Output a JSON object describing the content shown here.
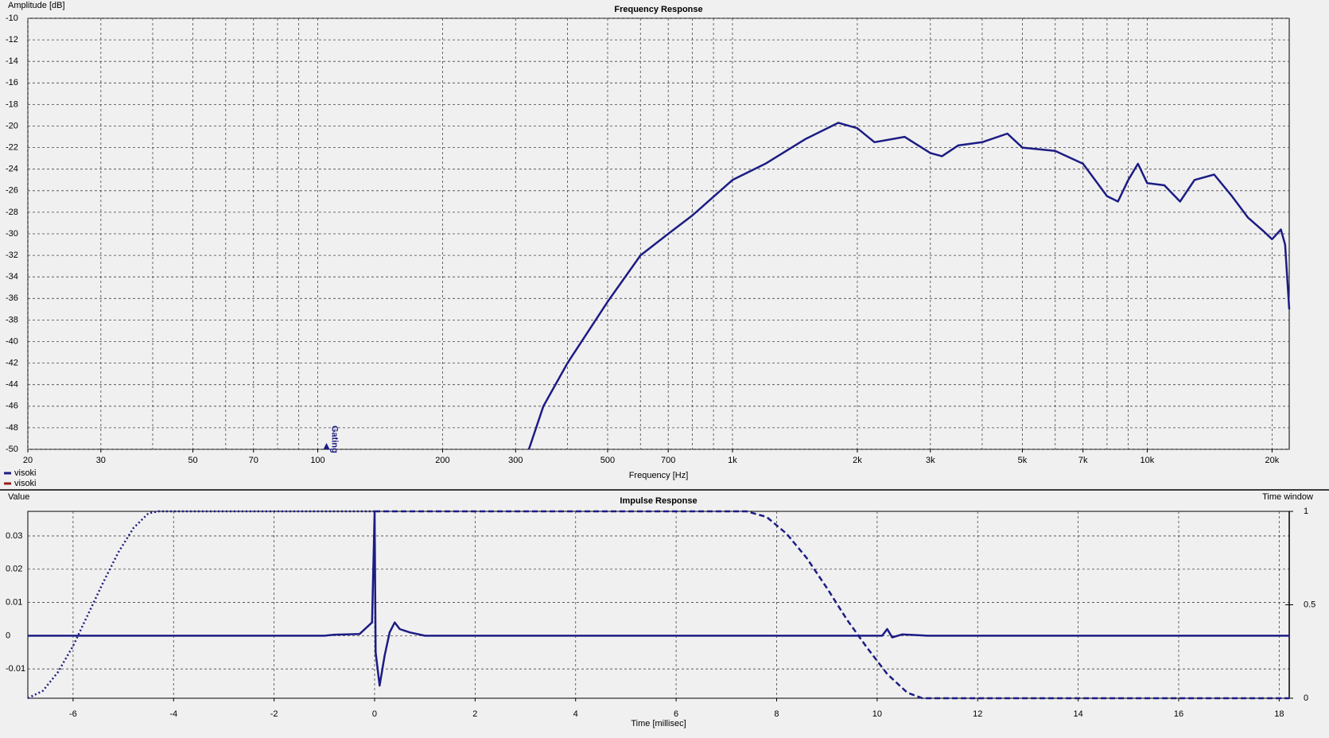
{
  "chart_data": [
    {
      "type": "line",
      "title": "Frequency Response",
      "y_label": "Amplitude [dB]",
      "x_label": "Frequency [Hz]",
      "xscale": "log",
      "xlim": [
        20,
        22000
      ],
      "ylim": [
        -50,
        -10
      ],
      "xticks": [
        20,
        30,
        50,
        70,
        100,
        200,
        300,
        500,
        700,
        {
          "value": 1000,
          "label": "1k"
        },
        {
          "value": 2000,
          "label": "2k"
        },
        {
          "value": 3000,
          "label": "3k"
        },
        {
          "value": 5000,
          "label": "5k"
        },
        {
          "value": 7000,
          "label": "7k"
        },
        {
          "value": 10000,
          "label": "10k"
        },
        {
          "value": 20000,
          "label": "20k"
        }
      ],
      "xminorticks": [
        40,
        60,
        80,
        90,
        400,
        600,
        800,
        900,
        4000,
        6000,
        8000,
        9000
      ],
      "yticks": [
        -10,
        -12,
        -14,
        -16,
        -18,
        -20,
        -22,
        -24,
        -26,
        -28,
        -30,
        -32,
        -34,
        -36,
        -38,
        -40,
        -42,
        -44,
        -46,
        -48,
        -50
      ],
      "grid": true,
      "annotation": {
        "text": "Gating",
        "x": 105
      },
      "legend": [
        {
          "name": "visoki",
          "color": "#1c1c84"
        },
        {
          "name": "visoki",
          "color": "#9b1b1b"
        }
      ],
      "series": [
        {
          "color": "#1c1c84",
          "x": [
            323,
            350,
            400,
            450,
            500,
            600,
            700,
            800,
            1000,
            1200,
            1500,
            1800,
            2000,
            2200,
            2600,
            3000,
            3200,
            3500,
            4000,
            4600,
            5000,
            6000,
            7000,
            8000,
            8500,
            9000,
            9500,
            10000,
            11000,
            12000,
            13000,
            14500,
            16000,
            17500,
            19000,
            20000,
            21000,
            21500,
            22000
          ],
          "values": [
            -50,
            -46,
            -42,
            -39,
            -36.3,
            -32,
            -30,
            -28.3,
            -25,
            -23.5,
            -21.2,
            -19.7,
            -20.2,
            -21.5,
            -21,
            -22.5,
            -22.8,
            -21.8,
            -21.5,
            -20.7,
            -22,
            -22.3,
            -23.5,
            -26.5,
            -27,
            -25,
            -23.5,
            -25.3,
            -25.5,
            -27,
            -25,
            -24.5,
            -26.5,
            -28.5,
            -29.7,
            -30.5,
            -29.6,
            -31,
            -37
          ]
        }
      ]
    },
    {
      "type": "line",
      "title": "Impulse Response",
      "y_label": "Value",
      "y2_label": "Time window",
      "x_label": "Time [millisec]",
      "xlim": [
        -6.9,
        18.2
      ],
      "ylim": [
        -0.0188,
        0.0374
      ],
      "y2lim": [
        0,
        1
      ],
      "xticks": [
        -6,
        -4,
        -2,
        0,
        2,
        4,
        6,
        8,
        10,
        12,
        14,
        16,
        18
      ],
      "yticks": [
        -0.01,
        0,
        0.01,
        0.02,
        0.03
      ],
      "y2ticks": [
        0,
        0.5,
        1
      ],
      "grid": true,
      "series": [
        {
          "color": "#1c1c84",
          "style": "solid",
          "x": [
            -6.9,
            -1,
            -0.8,
            -0.3,
            -0.05,
            0,
            0.02,
            0.06,
            0.1,
            0.2,
            0.3,
            0.4,
            0.5,
            0.7,
            1.0,
            10.1,
            10.2,
            10.3,
            10.5,
            11,
            18.2
          ],
          "values": [
            0,
            0,
            0.0003,
            0.0005,
            0.004,
            0.037,
            -0.005,
            -0.01,
            -0.015,
            -0.006,
            0.001,
            0.004,
            0.002,
            0.001,
            0,
            0,
            0.002,
            -0.0005,
            0.0004,
            0,
            0
          ]
        },
        {
          "color": "#1c1c84",
          "style": "dotted",
          "axis": "y2",
          "x": [
            -6.9,
            -6.6,
            -6.3,
            -6.0,
            -5.7,
            -5.4,
            -5.1,
            -4.8,
            -4.5,
            -4.3,
            0
          ],
          "values": [
            0,
            0.04,
            0.14,
            0.28,
            0.45,
            0.62,
            0.78,
            0.91,
            0.99,
            1,
            1
          ]
        },
        {
          "color": "#1c1c84",
          "style": "dashed",
          "axis": "y2",
          "x": [
            0,
            7.4,
            7.8,
            8.2,
            8.6,
            9.0,
            9.4,
            9.8,
            10.2,
            10.6,
            10.9,
            18.2
          ],
          "values": [
            1,
            1,
            0.97,
            0.88,
            0.75,
            0.59,
            0.42,
            0.27,
            0.13,
            0.03,
            0,
            0
          ]
        }
      ]
    }
  ]
}
